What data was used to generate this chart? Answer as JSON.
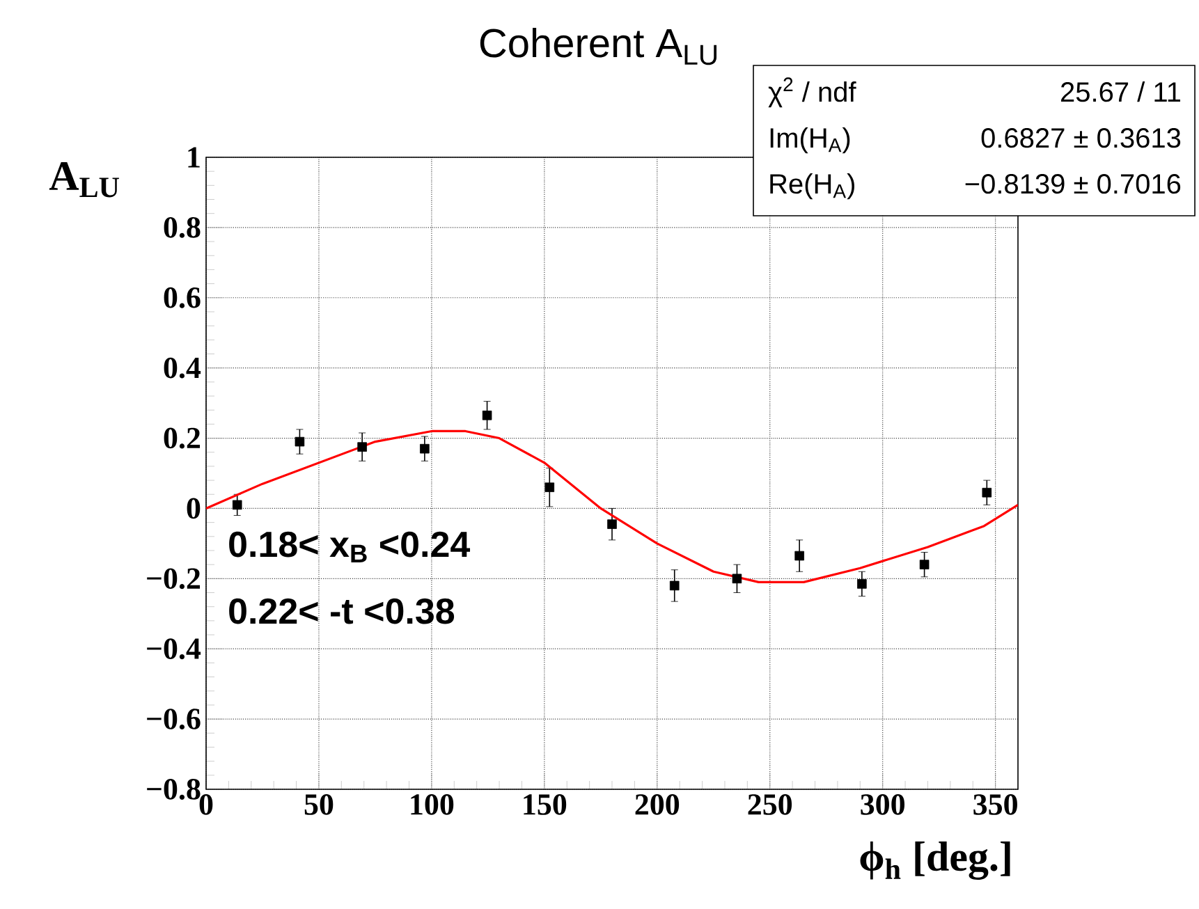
{
  "chart_data": {
    "type": "scatter",
    "title": "Coherent A$_{LU}$",
    "xlabel": "ϕ$_{h}$ [deg.]",
    "ylabel": "A$_{LU}$",
    "xlim": [
      0,
      360
    ],
    "ylim": [
      -0.8,
      1
    ],
    "xticks": [
      0,
      50,
      100,
      150,
      200,
      250,
      300,
      350
    ],
    "yticks": [
      {
        "value": -0.8,
        "label": "−0.8"
      },
      {
        "value": -0.6,
        "label": "−0.6"
      },
      {
        "value": -0.4,
        "label": "−0.4"
      },
      {
        "value": -0.2,
        "label": "−0.2"
      },
      0,
      0.2,
      0.4,
      0.6,
      0.8,
      1
    ],
    "grid": true,
    "marker": "square",
    "series": [
      {
        "color": "#000000",
        "x": [
          13.8,
          41.5,
          69.2,
          96.9,
          124.6,
          152.3,
          180.0,
          207.7,
          235.4,
          263.1,
          290.8,
          318.5,
          346.2
        ],
        "values": [
          0.01,
          0.19,
          0.175,
          0.17,
          0.265,
          0.06,
          -0.045,
          -0.22,
          -0.2,
          -0.135,
          -0.215,
          -0.16,
          0.045
        ],
        "errors": [
          0.03,
          0.035,
          0.04,
          0.035,
          0.04,
          0.055,
          0.045,
          0.045,
          0.04,
          0.045,
          0.035,
          0.035,
          0.035
        ]
      },
      {
        "type": "line",
        "color": "#ff0000",
        "marker": "none",
        "x": [
          0,
          25,
          50,
          75,
          100,
          115,
          130,
          150,
          175,
          200,
          225,
          245,
          265,
          290,
          320,
          345,
          360
        ],
        "values": [
          0.0,
          0.07,
          0.13,
          0.19,
          0.22,
          0.22,
          0.2,
          0.13,
          0.0,
          -0.1,
          -0.18,
          -0.21,
          -0.21,
          -0.17,
          -0.11,
          -0.05,
          0.01
        ]
      }
    ],
    "annotations": [
      "χ$^{2}$ / ndf",
      "25.67 / 11",
      "Im(H$_{A}$)",
      "0.6827 ± 0.3613",
      "Re(H$_{A}$)",
      "−0.8139 ± 0.7016",
      "0.18< x$_{B}$ <0.24",
      "0.22< -t <0.38"
    ]
  }
}
